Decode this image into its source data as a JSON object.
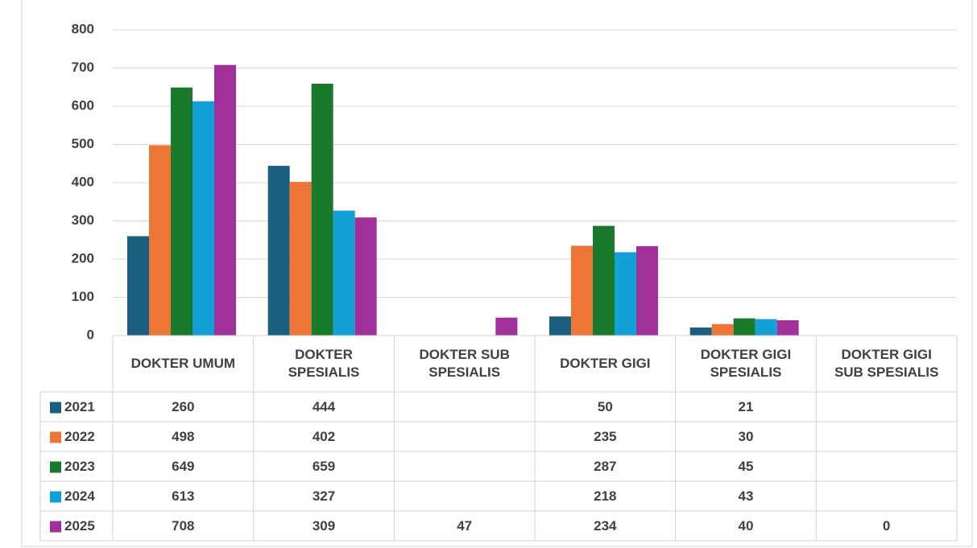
{
  "chart_data": {
    "type": "bar",
    "categories": [
      "DOKTER UMUM",
      "DOKTER SPESIALIS",
      "DOKTER SUB SPESIALIS",
      "DOKTER GIGI",
      "DOKTER GIGI SPESIALIS",
      "DOKTER GIGI SUB SPESIALIS"
    ],
    "series": [
      {
        "name": "2021",
        "color": "#1a5e80",
        "values": [
          260,
          444,
          null,
          50,
          21,
          null
        ]
      },
      {
        "name": "2022",
        "color": "#ed7535",
        "values": [
          498,
          402,
          null,
          235,
          30,
          null
        ]
      },
      {
        "name": "2023",
        "color": "#1a7a2c",
        "values": [
          649,
          659,
          null,
          287,
          45,
          null
        ]
      },
      {
        "name": "2024",
        "color": "#12a0d7",
        "values": [
          613,
          327,
          null,
          218,
          43,
          null
        ]
      },
      {
        "name": "2025",
        "color": "#a0309a",
        "values": [
          708,
          309,
          47,
          234,
          40,
          0
        ]
      }
    ],
    "ylim": [
      0,
      800
    ],
    "yticks": [
      0,
      100,
      200,
      300,
      400,
      500,
      600,
      700,
      800
    ],
    "grid": true,
    "data_table": true
  }
}
